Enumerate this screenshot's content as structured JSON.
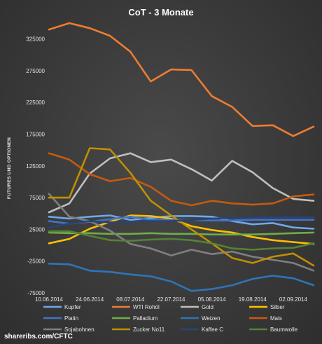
{
  "chart_data": {
    "type": "line",
    "title": "CoT - 3 Monate",
    "ylabel": "FUTURES UND OPTIONEN",
    "xlabel": "",
    "ylim": [
      -75000,
      350000
    ],
    "yticks": [
      -75000,
      -25000,
      25000,
      75000,
      125000,
      175000,
      225000,
      275000,
      325000
    ],
    "ytick_labels": [
      "-75000",
      "-25000",
      "25000",
      "75000",
      "125000",
      "175000",
      "225000",
      "275000",
      "325000"
    ],
    "x": [
      "10.06.2014",
      "17.06.2014",
      "24.06.2014",
      "01.07.2014",
      "08.07.2014",
      "15.07.2014",
      "22.07.2014",
      "29.07.2014",
      "05.08.2014",
      "12.08.2014",
      "19.08.2014",
      "26.08.2014",
      "02.09.2014",
      "09.09.2014"
    ],
    "xtick_labels": [
      "10.06.2014",
      "24.06.2014",
      "08.07.2014",
      "22.07.2014",
      "05.08.2014",
      "19.08.2014",
      "02.09.2014"
    ],
    "grid": false,
    "legend_position": "bottom",
    "series": [
      {
        "name": "Kupfer",
        "color": "#6fa8ea",
        "values": [
          45000,
          42000,
          45000,
          47000,
          40000,
          43000,
          46000,
          46000,
          45000,
          38000,
          33000,
          35000,
          28000,
          26000
        ]
      },
      {
        "name": "WTI Rohöl",
        "color": "#ed7d31",
        "values": [
          340000,
          350000,
          342000,
          330000,
          305000,
          258000,
          277000,
          276000,
          235000,
          218000,
          188000,
          189000,
          172000,
          187000
        ]
      },
      {
        "name": "Gold",
        "color": "#bfbfbf",
        "values": [
          52000,
          66000,
          113000,
          137000,
          145000,
          131000,
          135000,
          120000,
          102000,
          133000,
          115000,
          90000,
          73000,
          70000
        ]
      },
      {
        "name": "Silber",
        "color": "#ffc000",
        "values": [
          3000,
          10000,
          26000,
          37000,
          47000,
          46000,
          42000,
          30000,
          24000,
          20000,
          13000,
          8000,
          5000,
          2000
        ]
      },
      {
        "name": "Platin",
        "color": "#4472c4",
        "values": [
          38000,
          34000,
          37000,
          41000,
          45000,
          40000,
          40000,
          40000,
          39000,
          39000,
          40000,
          40000,
          40000,
          40000
        ]
      },
      {
        "name": "Palladium",
        "color": "#70ad47",
        "values": [
          20000,
          19000,
          19000,
          18000,
          18000,
          19000,
          18000,
          18000,
          17000,
          17000,
          17000,
          18000,
          19000,
          20000
        ]
      },
      {
        "name": "Weizen",
        "color": "#2e75b6",
        "values": [
          -29000,
          -30000,
          -40000,
          -42000,
          -46000,
          -49000,
          -57000,
          -72000,
          -69000,
          -63000,
          -53000,
          -48000,
          -52000,
          -63000
        ]
      },
      {
        "name": "Mais",
        "color": "#c55a11",
        "values": [
          145000,
          135000,
          112000,
          101000,
          106000,
          92000,
          70000,
          63000,
          70000,
          66000,
          64000,
          66000,
          77000,
          80000
        ]
      },
      {
        "name": "Sojabohnen",
        "color": "#7f7f7f",
        "values": [
          81000,
          45000,
          38000,
          23000,
          2000,
          -5000,
          -16000,
          -7000,
          -14000,
          -10000,
          -18000,
          -23000,
          -28000,
          -40000
        ]
      },
      {
        "name": "Zucker No11",
        "color": "#bf9000",
        "values": [
          75000,
          75000,
          153000,
          151000,
          114000,
          70000,
          47000,
          25000,
          3000,
          -20000,
          -28000,
          -18000,
          -13000,
          -32000
        ]
      },
      {
        "name": "Kaffee C",
        "color": "#264478",
        "values": [
          28000,
          34000,
          38000,
          36000,
          37000,
          38000,
          38000,
          40000,
          42000,
          43000,
          43000,
          44000,
          44000,
          44000
        ]
      },
      {
        "name": "Baumwolle",
        "color": "#548235",
        "values": [
          22000,
          22000,
          15000,
          8000,
          7000,
          9000,
          10000,
          8000,
          3000,
          -5000,
          -7000,
          -5000,
          -4000,
          3000
        ]
      }
    ]
  },
  "footer": {
    "credit": "shareribs.com/CFTC"
  }
}
